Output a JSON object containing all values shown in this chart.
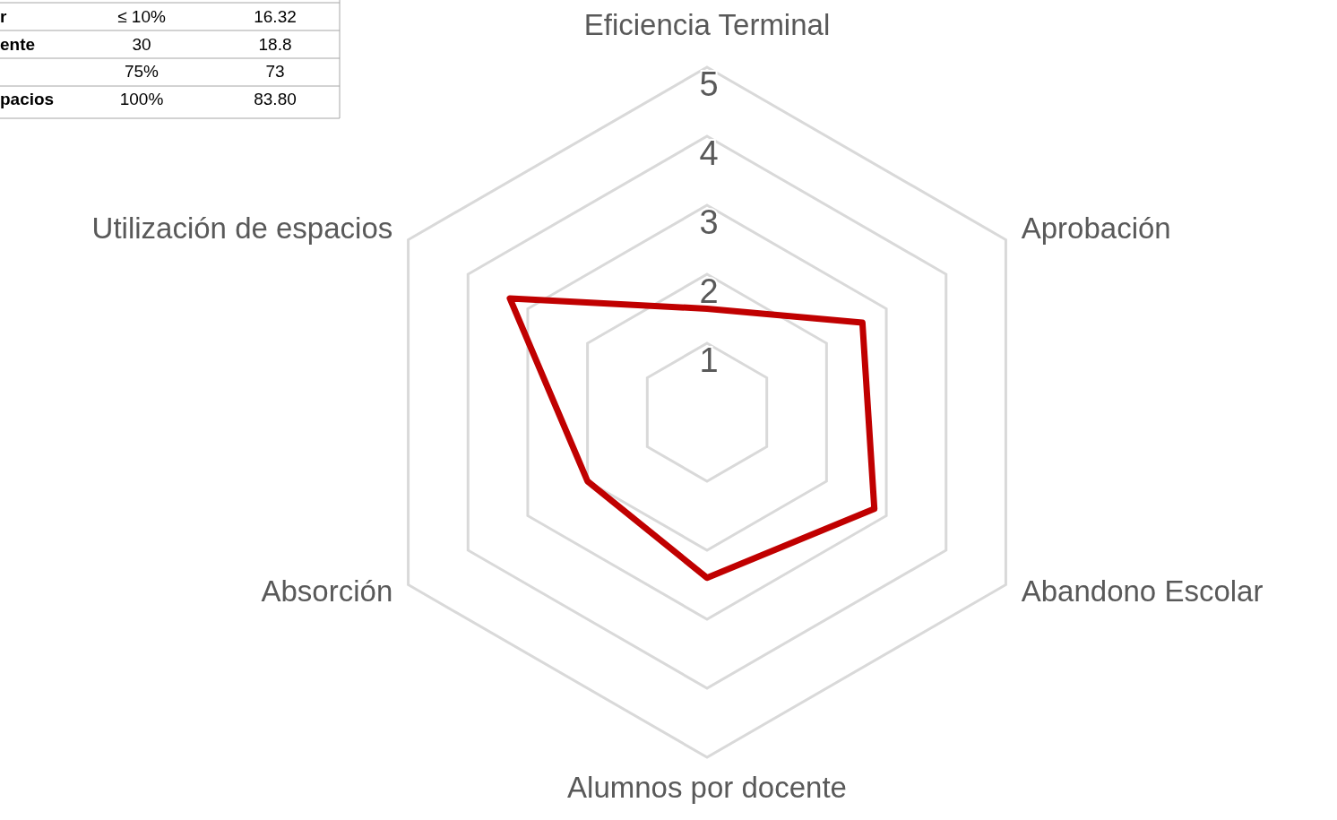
{
  "chart_data": {
    "type": "radar",
    "categories": [
      "Eficiencia Terminal",
      "Aprobación",
      "Abandono Escolar",
      "Alumnos por docente",
      "Absorción",
      "Utilización de espacios"
    ],
    "series": [
      {
        "color": "#c00000",
        "values": [
          1.5,
          2.6,
          2.8,
          2.4,
          2.0,
          3.3
        ]
      }
    ],
    "ylim": [
      0,
      5
    ],
    "yticks": [
      1,
      2,
      3,
      4,
      5
    ],
    "grid": true,
    "marker": "none",
    "line_style": "solid",
    "annotations": [
      "r",
      "≤ 10%",
      "16.32",
      "ente",
      "30",
      "18.8",
      "75%",
      "73",
      "pacios",
      "100%",
      "83.80"
    ]
  }
}
